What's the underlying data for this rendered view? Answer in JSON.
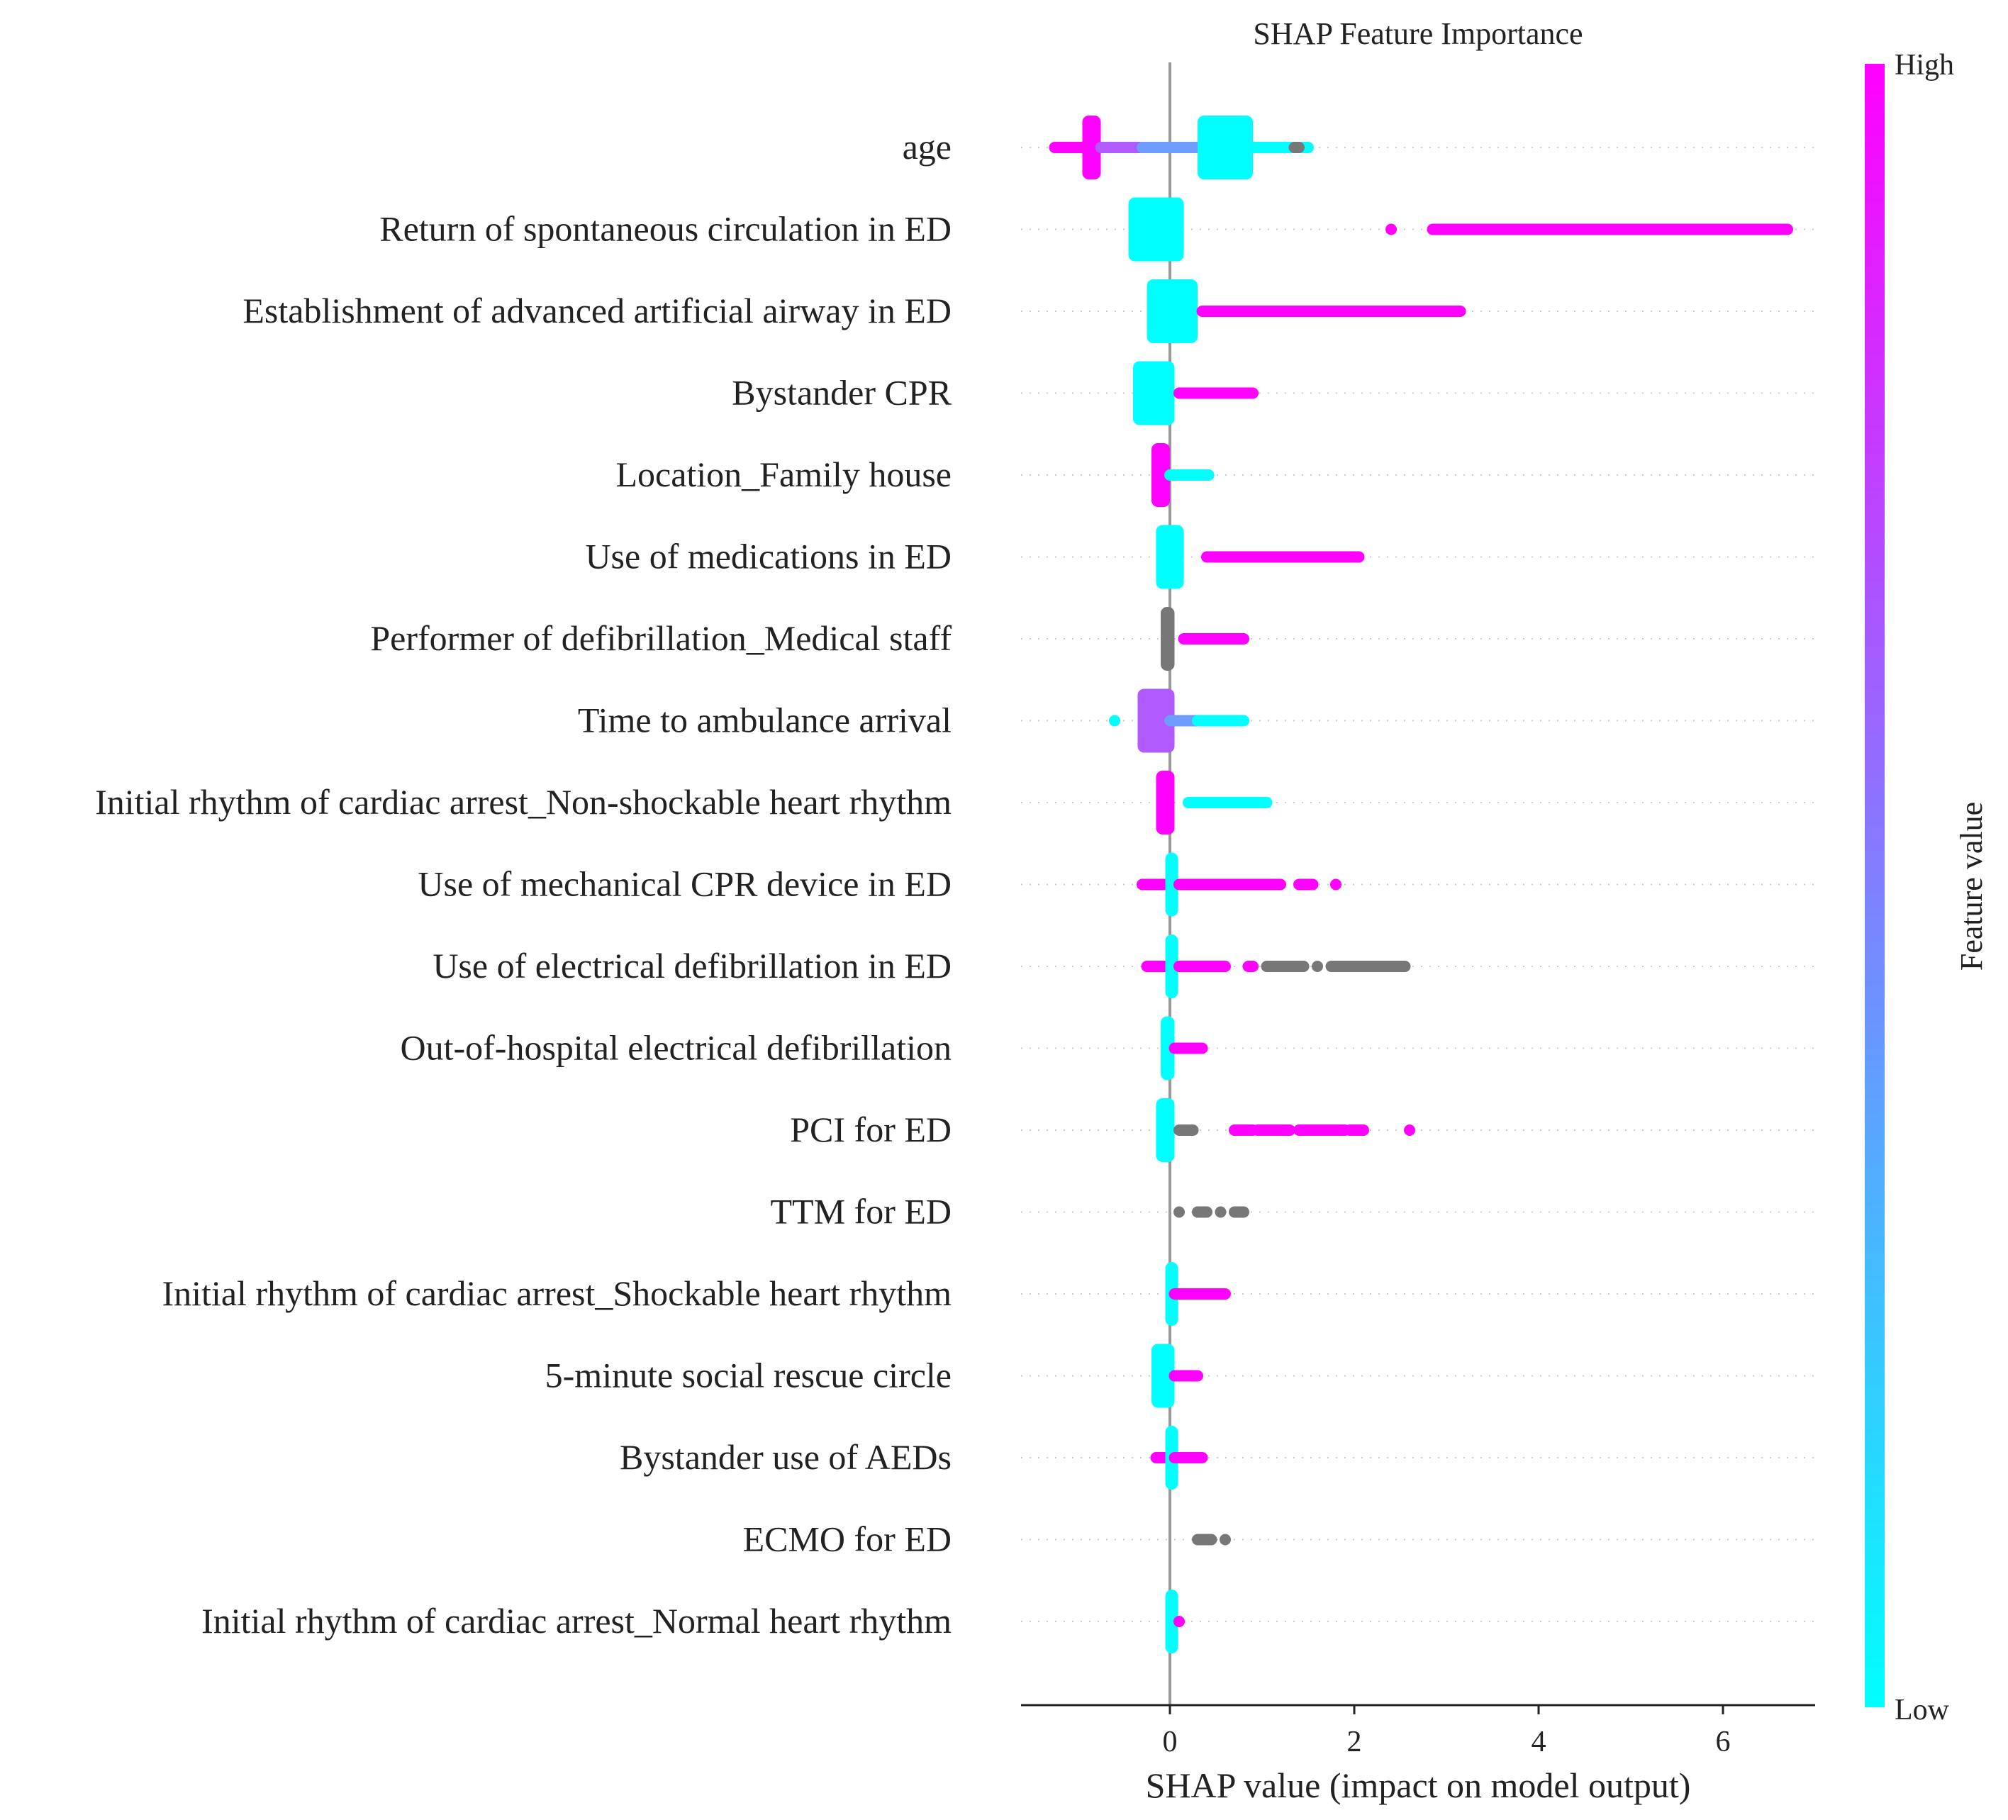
{
  "chart_data": {
    "type": "scatter",
    "title": "SHAP Feature Importance",
    "xlabel": "SHAP value (impact on model output)",
    "xlim": [
      -1.6,
      7.1
    ],
    "x_ticks": [
      0,
      2,
      4,
      6
    ],
    "x_tick_labels": [
      "0",
      "2",
      "4",
      "6"
    ],
    "colorbar": {
      "label": "Feature value",
      "high_label": "High",
      "low_label": "Low",
      "high_color": "#ff00ff",
      "low_color": "#00ffff",
      "missing_color": "#777777"
    },
    "features": [
      {
        "name": "age",
        "points": [
          {
            "x": -1.25,
            "x2": -0.95,
            "value": "high"
          },
          {
            "x": -0.95,
            "x2": -0.75,
            "value": "high",
            "dense": true
          },
          {
            "x": -0.75,
            "x2": -0.3,
            "value": "mid-high"
          },
          {
            "x": -0.3,
            "x2": 0.3,
            "value": "mid"
          },
          {
            "x": 0.3,
            "x2": 0.9,
            "value": "low",
            "dense": true
          },
          {
            "x": 0.9,
            "x2": 1.5,
            "value": "low"
          },
          {
            "x": 1.35,
            "x2": 1.4,
            "value": "missing"
          }
        ]
      },
      {
        "name": "Return of spontaneous circulation in ED",
        "points": [
          {
            "x": -0.45,
            "x2": 0.15,
            "value": "low",
            "dense": true
          },
          {
            "x": 2.4,
            "x2": 2.4,
            "value": "high"
          },
          {
            "x": 2.85,
            "x2": 6.7,
            "value": "high"
          }
        ]
      },
      {
        "name": "Establishment of advanced artificial airway in ED",
        "points": [
          {
            "x": -0.25,
            "x2": 0.3,
            "value": "low",
            "dense": true
          },
          {
            "x": 0.35,
            "x2": 3.15,
            "value": "high"
          }
        ]
      },
      {
        "name": "Bystander CPR",
        "points": [
          {
            "x": -0.4,
            "x2": 0.05,
            "value": "low",
            "dense": true
          },
          {
            "x": 0.1,
            "x2": 0.9,
            "value": "high"
          }
        ]
      },
      {
        "name": "Location_Family house",
        "points": [
          {
            "x": -0.2,
            "x2": 0.0,
            "value": "high",
            "dense": true
          },
          {
            "x": 0.0,
            "x2": 0.42,
            "value": "low"
          }
        ]
      },
      {
        "name": "Use of medications in ED",
        "points": [
          {
            "x": -0.15,
            "x2": 0.15,
            "value": "low",
            "dense": true
          },
          {
            "x": 0.4,
            "x2": 2.05,
            "value": "high"
          }
        ]
      },
      {
        "name": "Performer of defibrillation_Medical staff",
        "points": [
          {
            "x": -0.1,
            "x2": 0.05,
            "value": "missing",
            "dense": true
          },
          {
            "x": 0.15,
            "x2": 0.8,
            "value": "high"
          }
        ]
      },
      {
        "name": "Time to ambulance arrival",
        "points": [
          {
            "x": -0.6,
            "x2": -0.6,
            "value": "low"
          },
          {
            "x": -0.35,
            "x2": 0.05,
            "value": "mid-high",
            "dense": true
          },
          {
            "x": 0.0,
            "x2": 0.4,
            "value": "mid"
          },
          {
            "x": 0.3,
            "x2": 0.8,
            "value": "low"
          }
        ]
      },
      {
        "name": "Initial rhythm of cardiac arrest_Non-shockable heart rhythm",
        "points": [
          {
            "x": -0.15,
            "x2": 0.05,
            "value": "high",
            "dense": true
          },
          {
            "x": 0.2,
            "x2": 1.05,
            "value": "low"
          }
        ]
      },
      {
        "name": "Use of mechanical CPR device in ED",
        "points": [
          {
            "x": -0.3,
            "x2": -0.05,
            "value": "high"
          },
          {
            "x": -0.05,
            "x2": 0.05,
            "value": "low",
            "dense": true
          },
          {
            "x": 0.1,
            "x2": 1.2,
            "value": "high"
          },
          {
            "x": 1.4,
            "x2": 1.55,
            "value": "high"
          },
          {
            "x": 1.8,
            "x2": 1.8,
            "value": "high"
          }
        ]
      },
      {
        "name": "Use of electrical defibrillation in ED",
        "points": [
          {
            "x": -0.25,
            "x2": -0.05,
            "value": "high"
          },
          {
            "x": -0.05,
            "x2": 0.05,
            "value": "low",
            "dense": true
          },
          {
            "x": 0.1,
            "x2": 0.6,
            "value": "high"
          },
          {
            "x": 0.85,
            "x2": 0.9,
            "value": "high"
          },
          {
            "x": 1.05,
            "x2": 1.45,
            "value": "missing"
          },
          {
            "x": 1.6,
            "x2": 1.6,
            "value": "missing"
          },
          {
            "x": 1.75,
            "x2": 2.55,
            "value": "missing"
          }
        ]
      },
      {
        "name": "Out-of-hospital electrical defibrillation",
        "points": [
          {
            "x": -0.1,
            "x2": 0.05,
            "value": "low",
            "dense": true
          },
          {
            "x": 0.05,
            "x2": 0.35,
            "value": "high"
          }
        ]
      },
      {
        "name": "PCI for ED",
        "points": [
          {
            "x": -0.15,
            "x2": 0.05,
            "value": "low",
            "dense": true
          },
          {
            "x": 0.1,
            "x2": 0.25,
            "value": "missing"
          },
          {
            "x": 0.7,
            "x2": 0.9,
            "value": "high"
          },
          {
            "x": 0.95,
            "x2": 1.3,
            "value": "high"
          },
          {
            "x": 1.4,
            "x2": 1.9,
            "value": "high"
          },
          {
            "x": 1.95,
            "x2": 2.1,
            "value": "high"
          },
          {
            "x": 2.6,
            "x2": 2.6,
            "value": "high"
          }
        ]
      },
      {
        "name": "TTM for ED",
        "points": [
          {
            "x": 0.1,
            "x2": 0.1,
            "value": "missing"
          },
          {
            "x": 0.3,
            "x2": 0.4,
            "value": "missing"
          },
          {
            "x": 0.55,
            "x2": 0.55,
            "value": "missing"
          },
          {
            "x": 0.7,
            "x2": 0.8,
            "value": "missing"
          }
        ]
      },
      {
        "name": "Initial rhythm of cardiac arrest_Shockable heart rhythm",
        "points": [
          {
            "x": -0.05,
            "x2": 0.05,
            "value": "low",
            "dense": true
          },
          {
            "x": 0.05,
            "x2": 0.6,
            "value": "high"
          }
        ]
      },
      {
        "name": "5-minute social rescue circle",
        "points": [
          {
            "x": -0.2,
            "x2": 0.05,
            "value": "low",
            "dense": true
          },
          {
            "x": 0.05,
            "x2": 0.3,
            "value": "high"
          }
        ]
      },
      {
        "name": "Bystander use of AEDs",
        "points": [
          {
            "x": -0.15,
            "x2": -0.05,
            "value": "high"
          },
          {
            "x": -0.05,
            "x2": 0.05,
            "value": "low",
            "dense": true
          },
          {
            "x": 0.05,
            "x2": 0.35,
            "value": "high"
          }
        ]
      },
      {
        "name": "ECMO for ED",
        "points": [
          {
            "x": 0.3,
            "x2": 0.45,
            "value": "missing"
          },
          {
            "x": 0.6,
            "x2": 0.6,
            "value": "missing"
          }
        ]
      },
      {
        "name": "Initial rhythm of cardiac arrest_Normal heart rhythm",
        "points": [
          {
            "x": -0.05,
            "x2": 0.05,
            "value": "low",
            "dense": true
          },
          {
            "x": 0.1,
            "x2": 0.1,
            "value": "high"
          }
        ]
      }
    ]
  }
}
